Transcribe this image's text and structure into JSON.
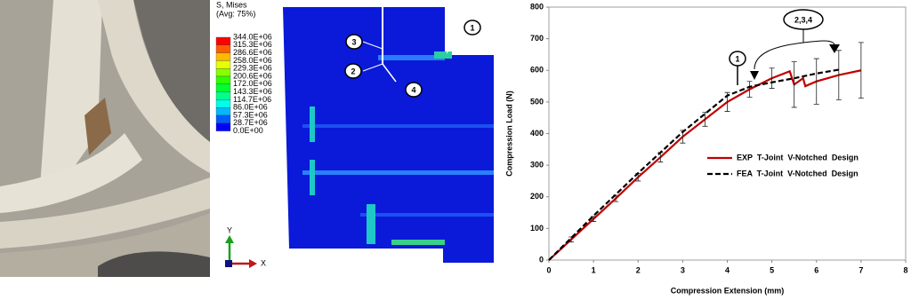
{
  "chart_data": {
    "type": "line",
    "xlabel": "Compression Extension (mm)",
    "ylabel": "Compression Load (N)",
    "xlim": [
      0,
      8
    ],
    "xticks": [
      0,
      1,
      2,
      3,
      4,
      5,
      6,
      7,
      8
    ],
    "ylim": [
      0,
      800
    ],
    "yticks": [
      0,
      100,
      200,
      300,
      400,
      500,
      600,
      700,
      800
    ],
    "legend": "right",
    "series": [
      {
        "name": "EXP  T-Joint  V-Notched  Design",
        "color": "#c00000",
        "dash": false,
        "x": [
          0,
          0.5,
          1,
          1.5,
          2,
          2.5,
          3,
          3.5,
          4,
          4.5,
          5,
          5.4,
          5.5,
          5.7,
          5.75,
          6,
          6.5,
          7
        ],
        "values": [
          0,
          65,
          130,
          195,
          262,
          325,
          390,
          445,
          500,
          540,
          575,
          597,
          555,
          575,
          550,
          565,
          585,
          600
        ],
        "errors": [
          null,
          8,
          8,
          10,
          12,
          15,
          20,
          22,
          30,
          25,
          32,
          null,
          72,
          null,
          null,
          72,
          78,
          88
        ]
      },
      {
        "name": "FEA  T-Joint  V-Notched  Design",
        "color": "#000000",
        "dash": true,
        "x": [
          0,
          1,
          2,
          3,
          4,
          4.5,
          5,
          5.5,
          6,
          6.5
        ],
        "values": [
          0,
          140,
          275,
          405,
          520,
          548,
          562,
          575,
          590,
          602
        ]
      }
    ],
    "annotations": [
      "1",
      "2,3,4"
    ]
  },
  "contour_legend": {
    "title": "S, Mises",
    "subtitle": "(Avg: 75%)",
    "levels": [
      "344.0E+06",
      "315.3E+06",
      "286.6E+06",
      "258.0E+06",
      "229.3E+06",
      "200.6E+06",
      "172.0E+06",
      "143.3E+06",
      "114.7E+06",
      "86.0E+06",
      "57.3E+06",
      "28.7E+06",
      "0.0E+00"
    ],
    "colors": [
      "#ff0000",
      "#ff5c00",
      "#ffb900",
      "#e8ff00",
      "#8bff00",
      "#2eff00",
      "#00ff2e",
      "#00ff8b",
      "#00ffe8",
      "#00b9ff",
      "#005cff",
      "#0000ff"
    ],
    "axes": [
      "Y",
      "X"
    ]
  },
  "model_labels": [
    "1",
    "3",
    "2",
    "4"
  ]
}
